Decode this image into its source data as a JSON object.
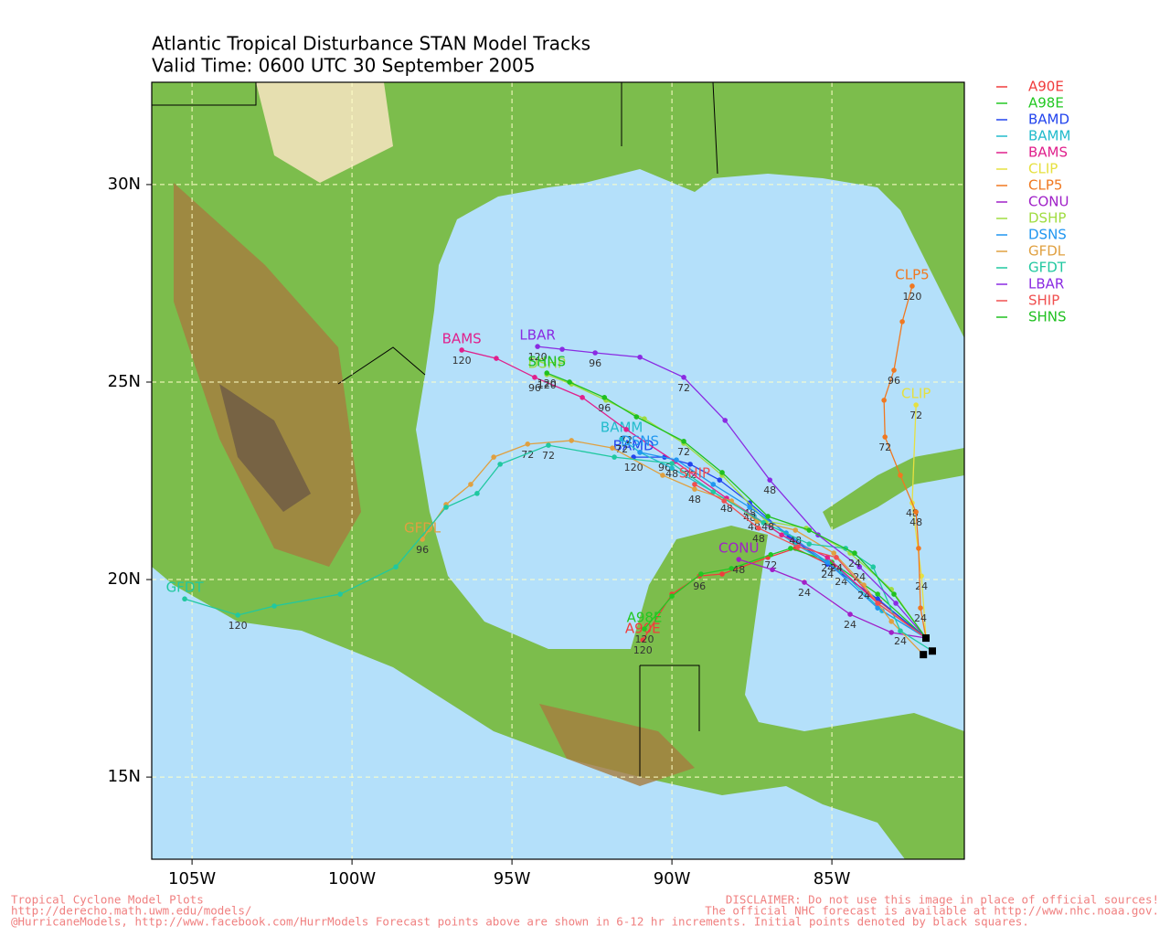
{
  "chart_data": {
    "type": "tracks",
    "title": "Atlantic Tropical Disturbance STAN Model Tracks",
    "subtitle": "Valid Time: 0600 UTC 30 September 2005",
    "xlim": [
      -106.26,
      -80.86
    ],
    "ylim": [
      12.92,
      32.59
    ],
    "xticks": [
      {
        "value": -105,
        "label": "105W"
      },
      {
        "value": -100,
        "label": "100W"
      },
      {
        "value": -95,
        "label": "95W"
      },
      {
        "value": -90,
        "label": "90W"
      },
      {
        "value": -85,
        "label": "85W"
      }
    ],
    "yticks": [
      {
        "value": 15,
        "label": "15N"
      },
      {
        "value": 20,
        "label": "20N"
      },
      {
        "value": 25,
        "label": "25N"
      },
      {
        "value": 30,
        "label": "30N"
      }
    ],
    "grid": true,
    "series": [
      {
        "name": "A90E",
        "color": "#f03c3c",
        "x": [
          -82.06,
          -83.51,
          -84.94,
          -86.14,
          -87.0,
          -88.43,
          -89.14,
          -90.0,
          -90.91
        ],
        "values": [
          18.52,
          19.44,
          20.32,
          20.79,
          20.56,
          20.14,
          20.09,
          19.63,
          18.47
        ],
        "hours": [
          null,
          null,
          null,
          null,
          null,
          null,
          96,
          null,
          120
        ]
      },
      {
        "name": "A98E",
        "color": "#22c822",
        "x": [
          -82.06,
          -83.57,
          -85.0,
          -86.29,
          -86.91,
          -88.14,
          -89.09,
          -90.0,
          -90.86
        ],
        "values": [
          18.52,
          19.63,
          20.44,
          20.79,
          20.63,
          20.28,
          20.14,
          19.58,
          18.75
        ],
        "hours": [
          null,
          null,
          null,
          null,
          72,
          null,
          null,
          null,
          120
        ]
      },
      {
        "name": "BAMD",
        "color": "#2244ee",
        "x": [
          -82.06,
          -83.57,
          -85.14,
          -86.34,
          -87.57,
          -88.51,
          -89.43,
          -90.23,
          -91.2
        ],
        "values": [
          18.52,
          19.51,
          20.39,
          21.09,
          21.94,
          22.52,
          22.92,
          23.1,
          23.1
        ],
        "hours": [
          null,
          null,
          24,
          null,
          48,
          null,
          72,
          96,
          120
        ]
      },
      {
        "name": "BAMM",
        "color": "#22bbcc",
        "x": [
          -82.06,
          -83.43,
          -84.71,
          -86.14,
          -87.43,
          -88.71,
          -90.0,
          -91.0,
          -91.57
        ],
        "values": [
          18.52,
          19.21,
          20.21,
          20.9,
          21.6,
          22.22,
          22.82,
          23.22,
          23.56
        ],
        "hours": [
          null,
          null,
          24,
          null,
          48,
          null,
          null,
          null,
          72
        ]
      },
      {
        "name": "BAMS",
        "color": "#e0208c",
        "x": [
          -82.06,
          -83.57,
          -85.14,
          -86.57,
          -88.29,
          -89.91,
          -91.43,
          -92.8,
          -94.29,
          -95.49,
          -96.57
        ],
        "values": [
          18.52,
          19.4,
          20.56,
          21.13,
          22.06,
          22.99,
          23.8,
          24.61,
          25.12,
          25.6,
          25.81
        ],
        "hours": [
          null,
          null,
          24,
          null,
          48,
          null,
          72,
          null,
          96,
          null,
          120
        ]
      },
      {
        "name": "CLIP",
        "color": "#e6e040",
        "x": [
          -82.06,
          -82.2,
          -82.49,
          -82.37
        ],
        "values": [
          18.52,
          20.09,
          21.94,
          24.42
        ],
        "hours": [
          null,
          24,
          48,
          72
        ]
      },
      {
        "name": "CLP5",
        "color": "#f07820",
        "x": [
          -82.06,
          -82.23,
          -82.29,
          -82.37,
          -82.86,
          -83.34,
          -83.37,
          -83.06,
          -82.8,
          -82.49
        ],
        "values": [
          18.52,
          19.28,
          20.79,
          21.71,
          22.64,
          23.61,
          24.54,
          25.3,
          26.53,
          27.43
        ],
        "hours": [
          null,
          24,
          null,
          48,
          null,
          72,
          null,
          96,
          null,
          120
        ]
      },
      {
        "name": "CONU",
        "color": "#a020c8",
        "x": [
          -82.06,
          -83.14,
          -84.43,
          -85.86,
          -86.86,
          -87.91
        ],
        "values": [
          18.52,
          18.66,
          19.12,
          19.93,
          20.25,
          20.51
        ],
        "hours": [
          null,
          null,
          24,
          24,
          null,
          48
        ]
      },
      {
        "name": "DSHP",
        "color": "#a0dc40",
        "x": [
          -82.06,
          -83.14,
          -84.43,
          -85.8,
          -87.06,
          -88.43,
          -89.63,
          -90.86,
          -92.06,
          -93.14,
          -93.91
        ],
        "values": [
          18.52,
          19.75,
          20.67,
          21.3,
          21.48,
          22.64,
          23.45,
          24.07,
          24.54,
          24.95,
          25.19
        ],
        "hours": [
          null,
          null,
          null,
          null,
          null,
          null,
          null,
          null,
          null,
          null,
          120
        ]
      },
      {
        "name": "DSNS",
        "color": "#2096f0",
        "x": [
          -82.06,
          -83.57,
          -85.14,
          -86.43,
          -87.57,
          -88.71,
          -89.86,
          -91.0
        ],
        "values": [
          18.52,
          19.28,
          20.44,
          21.18,
          21.83,
          22.41,
          23.03,
          23.22
        ],
        "hours": [
          null,
          null,
          null,
          null,
          48,
          null,
          null,
          null
        ]
      },
      {
        "name": "GFDL",
        "color": "#e0a040",
        "x": [
          -82.14,
          -83.14,
          -84.0,
          -84.94,
          -86.14,
          -87.34,
          -88.14,
          -89.29,
          -90.29,
          -91.86,
          -93.14,
          -94.51,
          -95.57,
          -96.29,
          -97.06,
          -97.8
        ],
        "values": [
          18.1,
          18.94,
          19.86,
          20.67,
          21.25,
          21.48,
          21.99,
          22.29,
          22.64,
          23.33,
          23.52,
          23.43,
          23.1,
          22.41,
          21.9,
          21.02
        ],
        "hours": [
          null,
          null,
          24,
          null,
          48,
          null,
          null,
          48,
          null,
          null,
          null,
          72,
          null,
          null,
          null,
          96
        ]
      },
      {
        "name": "GFDT",
        "color": "#20c8a0",
        "x": [
          -81.86,
          -82.86,
          -83.71,
          -84.57,
          -85.71,
          -87.14,
          -88.71,
          -90.0,
          -91.8,
          -93.86,
          -95.37,
          -96.09,
          -97.06,
          -98.63,
          -100.37,
          -102.43,
          -103.57,
          -105.23
        ],
        "values": [
          18.19,
          18.7,
          20.32,
          20.79,
          20.9,
          21.44,
          22.22,
          22.94,
          23.1,
          23.4,
          22.92,
          22.18,
          21.83,
          20.32,
          19.63,
          19.33,
          19.1,
          19.51
        ],
        "hours": [
          null,
          24,
          null,
          null,
          null,
          null,
          null,
          48,
          null,
          72,
          null,
          null,
          null,
          null,
          null,
          null,
          120,
          null
        ]
      },
      {
        "name": "LBAR",
        "color": "#8a2be2",
        "x": [
          -82.06,
          -83.0,
          -84.14,
          -85.43,
          -86.94,
          -88.34,
          -89.63,
          -91.0,
          -92.4,
          -93.43,
          -94.2
        ],
        "values": [
          18.52,
          19.4,
          20.32,
          21.13,
          22.52,
          24.03,
          25.12,
          25.63,
          25.74,
          25.83,
          25.9
        ],
        "hours": [
          null,
          null,
          24,
          null,
          48,
          null,
          72,
          null,
          96,
          null,
          120
        ]
      },
      {
        "name": "SHIP",
        "color": "#f05050",
        "x": [
          -82.06,
          -83.57,
          -84.86,
          -86.06,
          -87.29,
          -88.37,
          -89.29
        ],
        "values": [
          18.52,
          19.4,
          20.56,
          20.83,
          21.3,
          21.99,
          22.41
        ],
        "hours": [
          null,
          null,
          24,
          null,
          48,
          null,
          null
        ]
      },
      {
        "name": "SHNS",
        "color": "#20c020",
        "x": [
          -82.06,
          -83.06,
          -84.29,
          -85.71,
          -87.0,
          -88.43,
          -89.63,
          -91.11,
          -92.11,
          -93.2,
          -93.91
        ],
        "values": [
          18.52,
          19.63,
          20.67,
          21.25,
          21.6,
          22.71,
          23.5,
          24.12,
          24.61,
          25.0,
          25.23
        ],
        "hours": [
          null,
          null,
          24,
          null,
          48,
          null,
          72,
          null,
          96,
          null,
          120
        ]
      }
    ],
    "footer_left": [
      "Tropical Cyclone Model Plots",
      "http://derecho.math.uwm.edu/models/",
      "@HurricaneModels, http://www.facebook.com/HurrModels  Forecast points above are shown in 6-12 hr increments. Initial points denoted by black squares."
    ],
    "footer_right": [
      "DISCLAIMER: Do not use this image in place of official sources!",
      "The official NHC forecast is available at http://www.nhc.noaa.gov."
    ]
  }
}
